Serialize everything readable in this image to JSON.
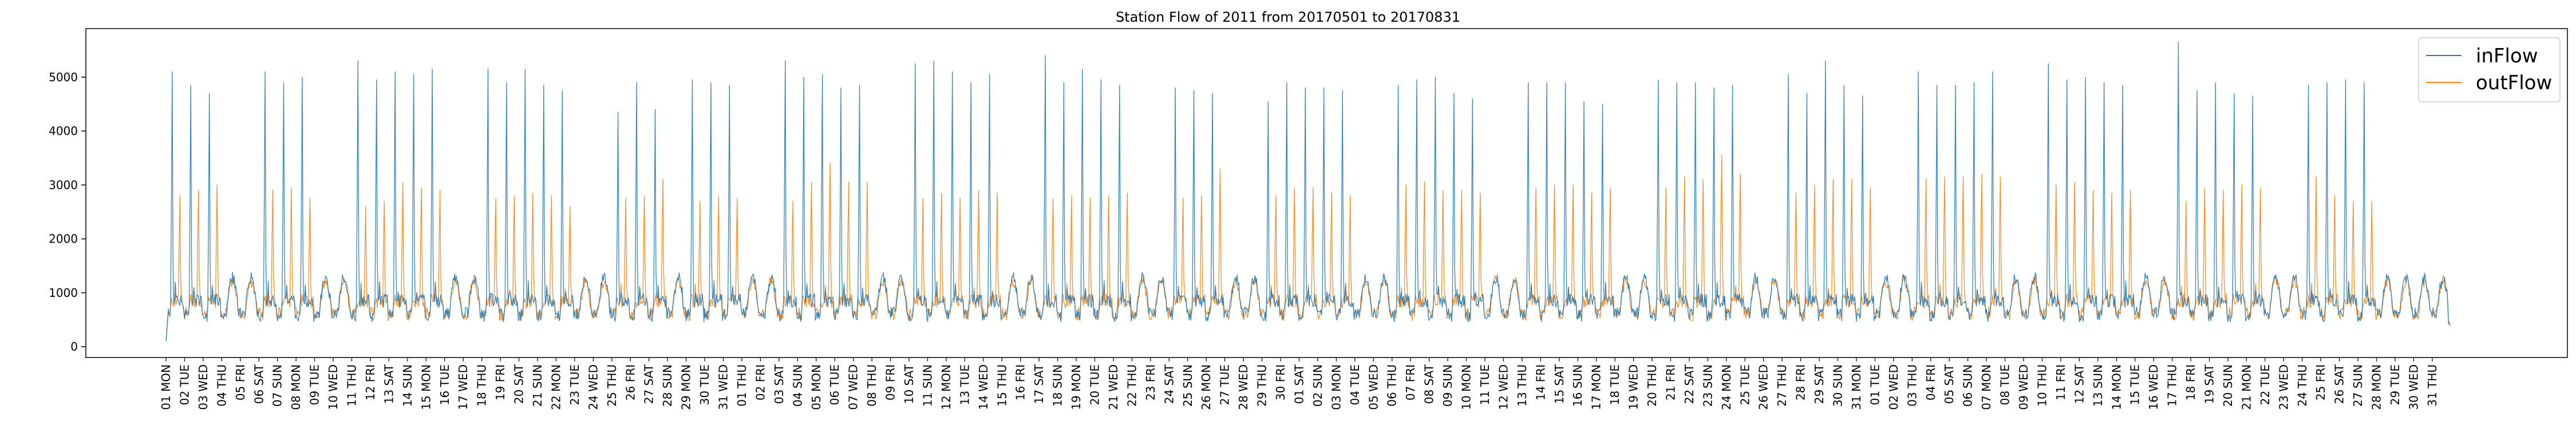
{
  "chart_data": {
    "type": "line",
    "title": "Station Flow of 2011 from 20170501 to 20170831",
    "xlabel": "",
    "ylabel": "",
    "ylim": [
      -200,
      5900
    ],
    "y_ticks": [
      0,
      1000,
      2000,
      3000,
      4000,
      5000
    ],
    "legend_position": "top-right",
    "grid": false,
    "samples_per_day": 24,
    "x_tick_labels": [
      "01 MON",
      "02 TUE",
      "03 WED",
      "04 THU",
      "05 FRI",
      "06 SAT",
      "07 SUN",
      "08 MON",
      "09 TUE",
      "10 WED",
      "11 THU",
      "12 FRI",
      "13 SAT",
      "14 SUN",
      "15 MON",
      "16 TUE",
      "17 WED",
      "18 THU",
      "19 FRI",
      "20 SAT",
      "21 SUN",
      "22 MON",
      "23 TUE",
      "24 WED",
      "25 THU",
      "26 FRI",
      "27 SAT",
      "28 SUN",
      "29 MON",
      "30 TUE",
      "31 WED",
      "01 THU",
      "02 FRI",
      "03 SAT",
      "04 SUN",
      "05 MON",
      "06 TUE",
      "07 WED",
      "08 THU",
      "09 FRI",
      "10 SAT",
      "11 SUN",
      "12 MON",
      "13 TUE",
      "14 WED",
      "15 THU",
      "16 FRI",
      "17 SAT",
      "18 SUN",
      "19 MON",
      "20 TUE",
      "21 WED",
      "22 THU",
      "23 FRI",
      "24 SAT",
      "25 SUN",
      "26 MON",
      "27 TUE",
      "28 WED",
      "29 THU",
      "30 FRI",
      "01 SAT",
      "02 SUN",
      "03 MON",
      "04 TUE",
      "05 WED",
      "06 THU",
      "07 FRI",
      "08 SAT",
      "09 SUN",
      "10 MON",
      "11 TUE",
      "12 WED",
      "13 THU",
      "14 FRI",
      "15 SAT",
      "16 SUN",
      "17 MON",
      "18 TUE",
      "19 WED",
      "20 THU",
      "21 FRI",
      "22 SAT",
      "23 SUN",
      "24 MON",
      "25 TUE",
      "26 WED",
      "27 THU",
      "28 FRI",
      "29 SAT",
      "30 SUN",
      "31 MON",
      "01 TUE",
      "02 WED",
      "03 THU",
      "04 FRI",
      "05 SAT",
      "06 SUN",
      "07 MON",
      "08 TUE",
      "09 WED",
      "10 THU",
      "11 FRI",
      "12 SAT",
      "13 SUN",
      "14 MON",
      "15 TUE",
      "16 WED",
      "17 THU",
      "18 FRI",
      "19 SAT",
      "20 SUN",
      "21 MON",
      "22 TUE",
      "23 WED",
      "24 THU",
      "25 FRI",
      "26 SAT",
      "27 SUN",
      "28 MON",
      "29 TUE",
      "30 WED",
      "31 THU"
    ],
    "series": [
      {
        "name": "inFlow",
        "color": "#1f77b4",
        "weekday_morning_peaks": [
          5100,
          4850,
          4700,
          0,
          0,
          5100,
          4900,
          5000,
          0,
          0,
          5300,
          4950,
          5100,
          5050,
          5150,
          0,
          0,
          5150,
          4900,
          5150,
          4850,
          4750,
          0,
          0,
          4350,
          4900,
          4400,
          0,
          4950,
          4900,
          4850,
          0,
          0,
          5300,
          5000,
          5050,
          4800,
          4850,
          0,
          0,
          5250,
          5300,
          5100,
          4900,
          5050,
          0,
          0,
          5400,
          4900,
          5150,
          4950,
          4850,
          0,
          0,
          4800,
          4750,
          4700,
          0,
          0,
          4550,
          4900,
          4800,
          4800,
          4750,
          0,
          0,
          4850,
          4950,
          5000,
          4700,
          4600,
          0,
          0,
          4900,
          4900,
          4900,
          4550,
          4500,
          0,
          0,
          4950,
          4900,
          4900,
          4800,
          4850,
          0,
          0,
          5050,
          4700,
          5300,
          4850,
          4650,
          0,
          0,
          5100,
          4850,
          4850,
          4900,
          5100,
          0,
          0,
          5250,
          4950,
          5000,
          4900,
          4850,
          0,
          0,
          5650,
          4750,
          4900,
          4700,
          4650,
          0,
          0,
          4850,
          4900,
          4950,
          4900
        ],
        "typical_daily_max": [
          1100,
          1500
        ],
        "typical_night_min": [
          300,
          500
        ]
      },
      {
        "name": "outFlow",
        "color": "#ff7f0e",
        "weekday_evening_peaks": [
          2800,
          2900,
          3000,
          0,
          0,
          2900,
          2950,
          2750,
          0,
          0,
          2600,
          2700,
          3050,
          2950,
          2900,
          0,
          0,
          2750,
          2800,
          2850,
          2800,
          2600,
          0,
          0,
          2750,
          2800,
          3100,
          0,
          2700,
          2800,
          2750,
          0,
          0,
          2700,
          3050,
          3400,
          3050,
          3050,
          0,
          0,
          2750,
          2850,
          2750,
          2900,
          2850,
          0,
          0,
          2750,
          2800,
          2750,
          2800,
          2850,
          0,
          0,
          2750,
          2800,
          3300,
          0,
          0,
          2800,
          2950,
          2950,
          2850,
          2800,
          0,
          0,
          3000,
          3050,
          2900,
          2900,
          2850,
          0,
          0,
          2950,
          3000,
          3000,
          2850,
          2950,
          0,
          0,
          2950,
          3150,
          3100,
          3550,
          3200,
          0,
          0,
          2850,
          3000,
          3100,
          3100,
          2950,
          0,
          0,
          3100,
          3150,
          3150,
          3200,
          3150,
          0,
          0,
          3000,
          3050,
          2900,
          2850,
          2900,
          0,
          0,
          2700,
          2950,
          2900,
          3000,
          2950,
          0,
          0,
          3150,
          2800,
          2700,
          2700
        ],
        "typical_daily_max": [
          1000,
          1400
        ],
        "typical_night_min": [
          300,
          500
        ]
      }
    ]
  }
}
